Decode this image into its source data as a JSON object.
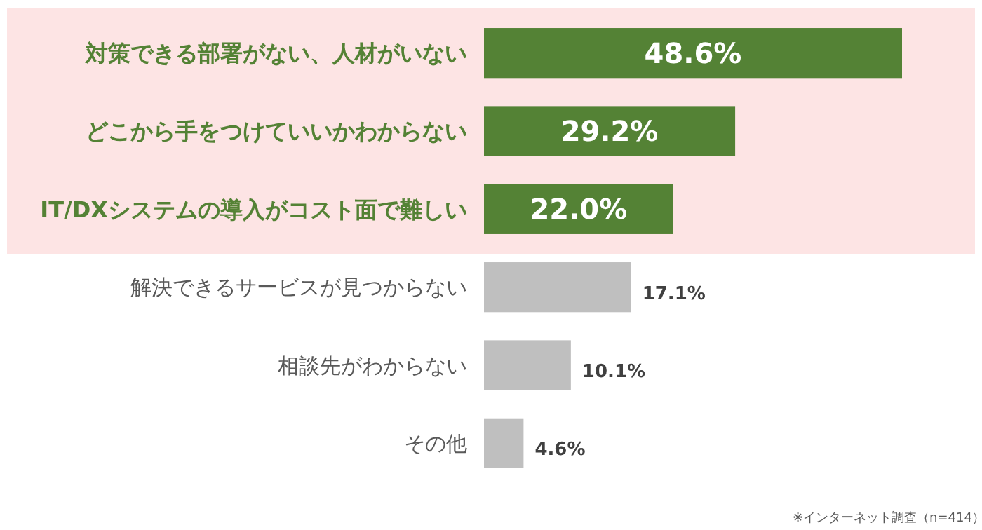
{
  "chart_data": {
    "type": "bar",
    "orientation": "horizontal",
    "categories": [
      "対策できる部署がない、人材がいない",
      "どこから手をつけていいかわからない",
      "IT/DXシステムの導入がコスト面で難しい",
      "解決できるサービスが見つからない",
      "相談先がわからない",
      "その他"
    ],
    "values": [
      48.6,
      29.2,
      22.0,
      17.1,
      10.1,
      4.6
    ],
    "value_labels": [
      "48.6%",
      "29.2%",
      "22.0%",
      "17.1%",
      "10.1%",
      "4.6%"
    ],
    "colors": [
      "#548235",
      "#548235",
      "#548235",
      "#bfbfbf",
      "#bfbfbf",
      "#bfbfbf"
    ],
    "bands": [
      {
        "axis": "y",
        "from": "対策できる部署がない、人材がいない",
        "to": "IT/DXシステムの導入がコスト面で難しい",
        "color": "#fde4e4"
      }
    ],
    "annotations": [
      "※インターネット調査（n=414）"
    ]
  }
}
